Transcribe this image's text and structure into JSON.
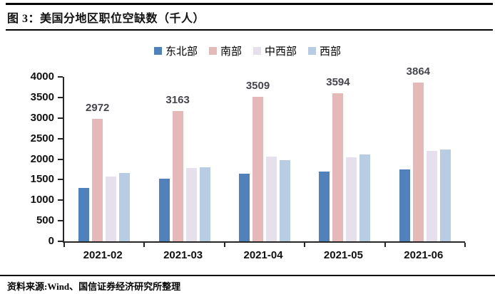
{
  "header": {
    "title": "图 3：美国分地区职位空缺数（千人）"
  },
  "footer": {
    "source": "资料来源:Wind、国信证券经济研究所整理"
  },
  "chart_data": {
    "type": "bar",
    "title": "美国分地区职位空缺数（千人）",
    "categories": [
      "2021-02",
      "2021-03",
      "2021-04",
      "2021-05",
      "2021-06"
    ],
    "series": [
      {
        "name": "东北部",
        "name_key": "northeast",
        "color": "#4F81BD",
        "show_value_labels": false,
        "values": [
          1300,
          1520,
          1640,
          1690,
          1750
        ]
      },
      {
        "name": "南部",
        "name_key": "south",
        "color": "#E5B9B7",
        "show_value_labels": true,
        "values": [
          2972,
          3163,
          3509,
          3594,
          3864
        ]
      },
      {
        "name": "中西部",
        "name_key": "midwest",
        "color": "#E5E0EC",
        "show_value_labels": false,
        "values": [
          1580,
          1780,
          2070,
          2050,
          2200
        ]
      },
      {
        "name": "西部",
        "name_key": "west",
        "color": "#B8CCE4",
        "show_value_labels": false,
        "values": [
          1660,
          1810,
          1970,
          2120,
          2230
        ]
      }
    ],
    "ylim": [
      0,
      4000
    ],
    "y_tick_step": 500,
    "y_ticks": [
      "0",
      "500",
      "1000",
      "1500",
      "2000",
      "2500",
      "3000",
      "3500",
      "4000"
    ],
    "legend_position": "top",
    "grid": false,
    "value_label_color": "#45454d",
    "axis_color": "#262626"
  }
}
